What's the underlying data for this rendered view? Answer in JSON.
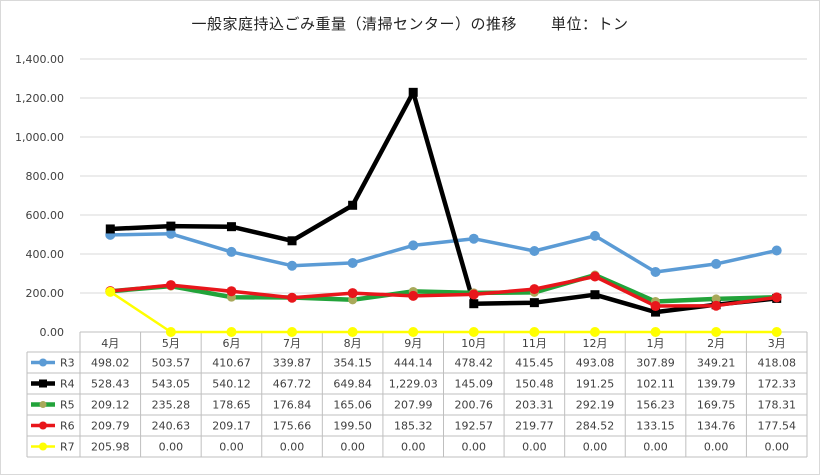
{
  "chart_data": {
    "type": "line",
    "title": "一般家庭持込ごみ重量（清掃センター）の推移",
    "unit_label": "単位：トン",
    "categories": [
      "4月",
      "5月",
      "6月",
      "7月",
      "8月",
      "9月",
      "10月",
      "11月",
      "12月",
      "1月",
      "2月",
      "3月"
    ],
    "ylim": [
      0,
      1400
    ],
    "yticks": [
      "0.00",
      "200.00",
      "400.00",
      "600.00",
      "800.00",
      "1,000.00",
      "1,200.00",
      "1,400.00"
    ],
    "grid": true,
    "legend": "data-table-left",
    "series": [
      {
        "name": "R3",
        "color": "#5b9bd5",
        "marker": "circle",
        "values": [
          498.02,
          503.57,
          410.67,
          339.87,
          354.15,
          444.14,
          478.42,
          415.45,
          493.08,
          307.89,
          349.21,
          418.08
        ],
        "labels": [
          "498.02",
          "503.57",
          "410.67",
          "339.87",
          "354.15",
          "444.14",
          "478.42",
          "415.45",
          "493.08",
          "307.89",
          "349.21",
          "418.08"
        ]
      },
      {
        "name": "R4",
        "color": "#000000",
        "marker": "square",
        "values": [
          528.43,
          543.05,
          540.12,
          467.72,
          649.84,
          1229.03,
          145.09,
          150.48,
          191.25,
          102.11,
          139.79,
          172.33
        ],
        "labels": [
          "528.43",
          "543.05",
          "540.12",
          "467.72",
          "649.84",
          "1,229.03",
          "145.09",
          "150.48",
          "191.25",
          "102.11",
          "139.79",
          "172.33"
        ]
      },
      {
        "name": "R5",
        "color": "#22a33a",
        "marker": "circle-olive",
        "values": [
          209.12,
          235.28,
          178.65,
          176.84,
          165.06,
          207.99,
          200.76,
          203.31,
          292.19,
          156.23,
          169.75,
          178.31
        ],
        "labels": [
          "209.12",
          "235.28",
          "178.65",
          "176.84",
          "165.06",
          "207.99",
          "200.76",
          "203.31",
          "292.19",
          "156.23",
          "169.75",
          "178.31"
        ]
      },
      {
        "name": "R6",
        "color": "#e8161b",
        "marker": "circle",
        "values": [
          209.79,
          240.63,
          209.17,
          175.66,
          199.5,
          185.32,
          192.57,
          219.77,
          284.52,
          133.15,
          134.76,
          177.54
        ],
        "labels": [
          "209.79",
          "240.63",
          "209.17",
          "175.66",
          "199.50",
          "185.32",
          "192.57",
          "219.77",
          "284.52",
          "133.15",
          "134.76",
          "177.54"
        ]
      },
      {
        "name": "R7",
        "color": "#ffff00",
        "marker": "circle",
        "values": [
          205.98,
          0,
          0,
          0,
          0,
          0,
          0,
          0,
          0,
          0,
          0,
          0
        ],
        "labels": [
          "205.98",
          "0.00",
          "0.00",
          "0.00",
          "0.00",
          "0.00",
          "0.00",
          "0.00",
          "0.00",
          "0.00",
          "0.00",
          "0.00"
        ]
      }
    ]
  }
}
